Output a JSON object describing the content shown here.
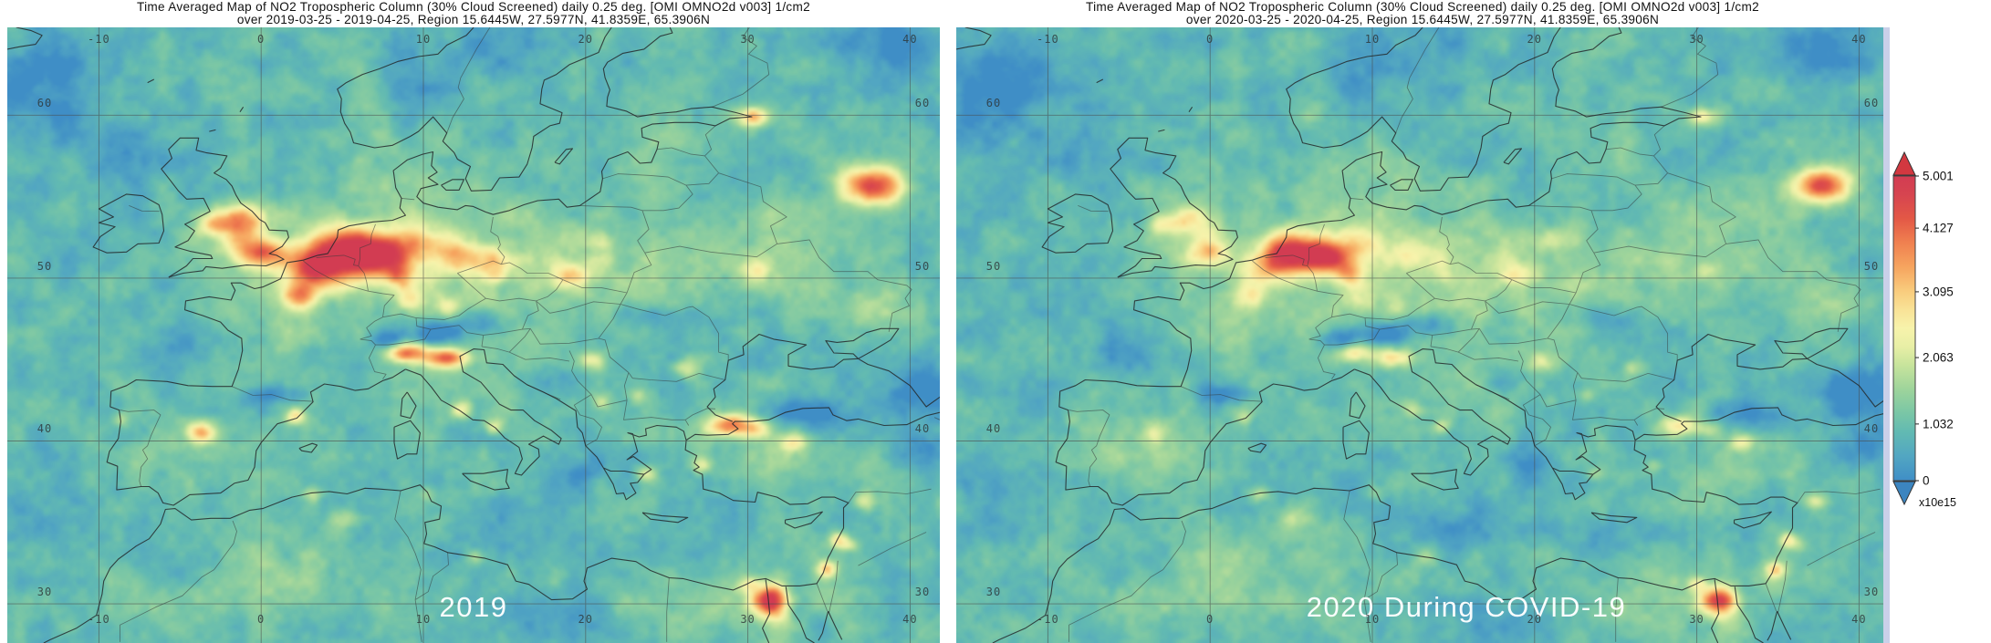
{
  "panels": [
    {
      "title_line1": "Time Averaged Map of NO2 Tropospheric Column (30% Cloud Screened) daily 0.25 deg. [OMI OMNO2d v003] 1/cm2",
      "title_line2": "over 2019-03-25 - 2019-04-25, Region 15.6445W, 27.5977N, 41.8359E, 65.3906N",
      "year_label": "2019",
      "seed": 7,
      "hotspots": [
        [
          -1.3,
          53.5,
          1.5,
          1.05,
          2.6
        ],
        [
          -0.1,
          51.55,
          1.6,
          1.0,
          3.1
        ],
        [
          -3.0,
          53.3,
          0.9,
          0.7,
          1.6
        ],
        [
          3.3,
          50.5,
          1.8,
          1.1,
          2.4
        ],
        [
          4.9,
          51.6,
          2.3,
          1.5,
          3.7
        ],
        [
          7.3,
          51.4,
          1.9,
          1.2,
          3.2
        ],
        [
          9.7,
          52.2,
          1.7,
          1.1,
          1.7
        ],
        [
          12.2,
          51.3,
          1.4,
          0.95,
          1.7
        ],
        [
          14.4,
          51.0,
          1.0,
          0.8,
          1.2
        ],
        [
          2.4,
          48.9,
          1.05,
          0.8,
          2.3
        ],
        [
          8.6,
          50.1,
          1.0,
          0.8,
          1.7
        ],
        [
          9.2,
          48.7,
          0.85,
          0.7,
          1.2
        ],
        [
          11.5,
          48.2,
          0.7,
          0.6,
          1.0
        ],
        [
          8.9,
          45.45,
          1.15,
          0.6,
          3.2
        ],
        [
          11.3,
          45.1,
          1.4,
          0.6,
          2.9
        ],
        [
          -3.6,
          40.5,
          0.8,
          0.65,
          2.5
        ],
        [
          2.1,
          41.5,
          0.6,
          0.5,
          1.8
        ],
        [
          -8.6,
          41.3,
          0.5,
          0.45,
          0.9
        ],
        [
          5.2,
          35.2,
          0.9,
          0.7,
          0.9
        ],
        [
          3.1,
          36.7,
          0.6,
          0.5,
          1.0
        ],
        [
          10.2,
          36.8,
          0.55,
          0.45,
          0.8
        ],
        [
          13.2,
          32.85,
          0.6,
          0.5,
          0.7
        ],
        [
          19.1,
          50.2,
          1.2,
          0.8,
          1.7
        ],
        [
          21.0,
          52.25,
          0.75,
          0.6,
          1.0
        ],
        [
          14.4,
          50.1,
          0.6,
          0.5,
          0.9
        ],
        [
          37.7,
          55.7,
          1.8,
          1.15,
          3.7
        ],
        [
          30.3,
          59.9,
          0.95,
          0.6,
          2.7
        ],
        [
          30.5,
          50.45,
          0.8,
          0.6,
          1.1
        ],
        [
          37.8,
          48.1,
          2.3,
          1.2,
          0.95
        ],
        [
          28.9,
          40.95,
          1.4,
          0.7,
          3.1
        ],
        [
          30.7,
          40.7,
          1.0,
          0.6,
          1.4
        ],
        [
          32.8,
          39.9,
          0.75,
          0.55,
          1.6
        ],
        [
          27.2,
          38.5,
          0.6,
          0.5,
          1.1
        ],
        [
          23.7,
          38.0,
          0.6,
          0.5,
          1.2
        ],
        [
          12.4,
          41.9,
          0.7,
          0.55,
          1.4
        ],
        [
          14.3,
          40.9,
          0.6,
          0.5,
          1.3
        ],
        [
          20.4,
          44.9,
          0.8,
          0.6,
          1.3
        ],
        [
          26.1,
          44.45,
          0.8,
          0.6,
          1.2
        ],
        [
          23.3,
          42.8,
          0.55,
          0.45,
          0.9
        ],
        [
          21.0,
          42.4,
          0.55,
          0.45,
          0.9
        ],
        [
          31.3,
          30.2,
          1.15,
          0.9,
          3.7
        ],
        [
          30.0,
          31.2,
          0.7,
          0.5,
          1.3
        ],
        [
          34.85,
          32.1,
          0.6,
          0.5,
          2.1
        ],
        [
          35.6,
          33.9,
          0.55,
          0.5,
          2.0
        ],
        [
          37.2,
          36.3,
          0.75,
          0.55,
          1.4
        ],
        [
          36.3,
          33.6,
          0.5,
          0.45,
          1.0
        ]
      ]
    },
    {
      "title_line1": "Time Averaged Map of NO2 Tropospheric Column (30% Cloud Screened) daily 0.25 deg. [OMI OMNO2d v003] 1/cm2",
      "title_line2": "over 2020-03-25 - 2020-04-25, Region 15.6445W, 27.5977N, 41.8359E, 65.3906N",
      "year_label": "2020 During COVID-19",
      "seed": 13,
      "hotspots": [
        [
          -1.3,
          53.5,
          1.3,
          0.9,
          1.5
        ],
        [
          -0.1,
          51.55,
          1.2,
          0.85,
          2.0
        ],
        [
          -3.0,
          53.3,
          0.8,
          0.6,
          1.0
        ],
        [
          3.3,
          50.5,
          1.5,
          1.0,
          1.3
        ],
        [
          4.9,
          51.55,
          1.8,
          1.2,
          3.5
        ],
        [
          7.3,
          51.35,
          1.5,
          1.05,
          2.9
        ],
        [
          9.7,
          52.2,
          1.4,
          0.95,
          1.0
        ],
        [
          12.2,
          51.3,
          1.2,
          0.85,
          1.0
        ],
        [
          14.4,
          51.0,
          0.9,
          0.7,
          0.7
        ],
        [
          2.4,
          48.9,
          0.95,
          0.75,
          1.2
        ],
        [
          8.6,
          50.1,
          0.95,
          0.75,
          1.5
        ],
        [
          9.2,
          48.7,
          0.8,
          0.65,
          0.8
        ],
        [
          11.5,
          48.2,
          0.65,
          0.55,
          0.7
        ],
        [
          8.9,
          45.45,
          1.05,
          0.55,
          1.9
        ],
        [
          11.3,
          45.1,
          1.3,
          0.55,
          1.7
        ],
        [
          -3.6,
          40.5,
          0.7,
          0.6,
          0.8
        ],
        [
          2.1,
          41.5,
          0.55,
          0.45,
          0.8
        ],
        [
          -8.6,
          41.3,
          0.45,
          0.4,
          0.5
        ],
        [
          5.2,
          35.2,
          0.9,
          0.7,
          0.8
        ],
        [
          3.1,
          36.7,
          0.6,
          0.5,
          0.9
        ],
        [
          10.2,
          36.8,
          0.55,
          0.45,
          0.7
        ],
        [
          13.2,
          32.85,
          0.6,
          0.5,
          0.6
        ],
        [
          19.1,
          50.2,
          1.1,
          0.75,
          1.2
        ],
        [
          21.0,
          52.25,
          0.7,
          0.55,
          0.7
        ],
        [
          14.4,
          50.1,
          0.55,
          0.45,
          0.6
        ],
        [
          37.7,
          55.7,
          1.7,
          1.1,
          3.4
        ],
        [
          30.3,
          59.9,
          0.85,
          0.55,
          1.8
        ],
        [
          30.5,
          50.45,
          0.75,
          0.55,
          0.7
        ],
        [
          37.8,
          48.1,
          2.1,
          1.1,
          0.7
        ],
        [
          28.9,
          40.95,
          1.2,
          0.65,
          1.8
        ],
        [
          30.7,
          40.7,
          0.9,
          0.55,
          0.9
        ],
        [
          32.8,
          39.9,
          0.7,
          0.5,
          1.3
        ],
        [
          27.2,
          38.5,
          0.55,
          0.45,
          0.8
        ],
        [
          23.7,
          38.0,
          0.55,
          0.45,
          0.8
        ],
        [
          12.4,
          41.9,
          0.65,
          0.5,
          0.9
        ],
        [
          14.3,
          40.9,
          0.55,
          0.45,
          1.0
        ],
        [
          20.4,
          44.9,
          0.75,
          0.55,
          1.0
        ],
        [
          26.1,
          44.45,
          0.75,
          0.55,
          0.9
        ],
        [
          23.3,
          42.8,
          0.5,
          0.4,
          0.7
        ],
        [
          21.0,
          42.4,
          0.5,
          0.4,
          0.7
        ],
        [
          31.3,
          30.2,
          1.1,
          0.85,
          3.5
        ],
        [
          30.0,
          31.2,
          0.65,
          0.45,
          1.1
        ],
        [
          34.85,
          32.1,
          0.55,
          0.45,
          1.7
        ],
        [
          35.6,
          33.9,
          0.5,
          0.45,
          1.6
        ],
        [
          37.2,
          36.3,
          0.7,
          0.5,
          1.1
        ],
        [
          36.3,
          33.6,
          0.45,
          0.4,
          0.8
        ]
      ]
    }
  ],
  "shared_features": {
    "positive": [
      [
        10,
        51,
        9,
        4,
        0.85
      ],
      [
        22,
        50.5,
        7,
        3.5,
        0.6
      ],
      [
        33,
        52,
        6,
        4,
        0.5
      ],
      [
        -1.5,
        52.6,
        3,
        2.4,
        0.5
      ],
      [
        2,
        47,
        4,
        3,
        0.4
      ],
      [
        -4.5,
        39.5,
        4,
        2.6,
        0.55
      ],
      [
        0,
        31.5,
        9,
        2.8,
        0.6
      ],
      [
        27,
        30.2,
        6,
        2.2,
        0.5
      ],
      [
        33,
        38.8,
        5,
        2,
        0.55
      ],
      [
        16,
        43.5,
        5,
        3,
        0.4
      ],
      [
        9.5,
        56.5,
        3.5,
        2,
        0.45
      ],
      [
        7,
        61.2,
        1.6,
        2.6,
        0.6
      ],
      [
        25,
        58,
        4,
        2.6,
        0.3
      ],
      [
        31.8,
        28.8,
        0.8,
        2.6,
        0.8
      ],
      [
        35,
        31.8,
        1.6,
        2.0,
        0.45
      ]
    ],
    "negative": [
      [
        8,
        46.2,
        1.15,
        0.7,
        -1.35
      ],
      [
        10.8,
        46.6,
        1.35,
        0.7,
        -1.55
      ],
      [
        13.6,
        47.15,
        1.4,
        0.8,
        -1.15
      ],
      [
        0.8,
        42.85,
        1.6,
        0.55,
        -1.0
      ],
      [
        8.5,
        62.3,
        2.2,
        2.2,
        -0.7
      ],
      [
        14,
        64.5,
        3,
        2,
        -0.55
      ],
      [
        -13,
        61.5,
        3.6,
        3.4,
        -0.85
      ],
      [
        -7.6,
        57.6,
        2.3,
        1.8,
        -0.5
      ],
      [
        40.3,
        42.9,
        2.3,
        1.5,
        -1.15
      ],
      [
        33.8,
        41.6,
        2.8,
        0.8,
        -0.95
      ],
      [
        40.6,
        39.7,
        2.0,
        1.3,
        -0.8
      ],
      [
        24.8,
        47.6,
        2.3,
        0.8,
        -0.75
      ],
      [
        18.2,
        43.8,
        1.7,
        0.9,
        -0.6
      ],
      [
        15,
        34.6,
        2.6,
        1.6,
        -0.5
      ],
      [
        19.8,
        38.1,
        1.5,
        1.2,
        -0.6
      ],
      [
        -5,
        45.7,
        2.5,
        1.7,
        -0.45
      ],
      [
        -4.8,
        32.2,
        2.6,
        1.3,
        -0.5
      ],
      [
        38.5,
        64.3,
        3.2,
        1.9,
        -0.85
      ],
      [
        -4.4,
        57.2,
        1.1,
        0.8,
        -0.55
      ],
      [
        3.2,
        45.2,
        1.1,
        0.75,
        -0.5
      ],
      [
        18,
        28.8,
        3.2,
        1.6,
        -0.45
      ],
      [
        24.5,
        34.2,
        2.5,
        1.2,
        -0.35
      ],
      [
        -12,
        36,
        3,
        3,
        -0.3
      ],
      [
        30,
        56.5,
        2.6,
        1.8,
        -0.3
      ]
    ]
  },
  "grid": {
    "region": {
      "west": -15.6445,
      "south": 27.5977,
      "east": 41.8359,
      "north": 65.3906
    },
    "lon_ticks": [
      -10,
      0,
      10,
      20,
      30,
      40
    ],
    "lon_labels": [
      "-10",
      "0",
      "10",
      "20",
      "30",
      "40"
    ],
    "lat_ticks": [
      60,
      50,
      40,
      30
    ],
    "lat_labels": [
      "60",
      "50",
      "40",
      "30"
    ]
  },
  "colorbar": {
    "ticks": [
      {
        "label": "5.001",
        "pos": 0.0
      },
      {
        "label": "4.127",
        "pos": 0.171
      },
      {
        "label": "3.095",
        "pos": 0.38
      },
      {
        "label": "2.063",
        "pos": 0.596
      },
      {
        "label": "1.032",
        "pos": 0.814
      },
      {
        "label": "0",
        "pos": 1.0
      }
    ],
    "unit_label": "x10e15",
    "max_value": 5.001,
    "palette": [
      [
        0.0,
        "#3f8ec6"
      ],
      [
        0.4,
        "#52a6c2"
      ],
      [
        0.8,
        "#62bab2"
      ],
      [
        1.1,
        "#79c6a6"
      ],
      [
        1.5,
        "#9ed49b"
      ],
      [
        1.9,
        "#c8e49c"
      ],
      [
        2.2,
        "#e8efa6"
      ],
      [
        2.5,
        "#f7f3ab"
      ],
      [
        2.8,
        "#f9e397"
      ],
      [
        3.1,
        "#f9cd7e"
      ],
      [
        3.5,
        "#f6a55f"
      ],
      [
        3.9,
        "#f08150"
      ],
      [
        4.3,
        "#e35846"
      ],
      [
        4.7,
        "#d64450"
      ],
      [
        5.0,
        "#d23c52"
      ]
    ],
    "arrow_up_color": "#d23840",
    "arrow_down_color": "#3c85c0"
  },
  "chart_data": {
    "type": "heatmap",
    "title": "Time Averaged Map of NO2 Tropospheric Column (30% Cloud Screened) daily 0.25 deg. [OMI OMNO2d v003]",
    "panels": [
      "2019",
      "2020 During COVID-19"
    ],
    "colorbar_ticks": [
      5.001,
      4.127,
      3.095,
      2.063,
      1.032,
      0
    ],
    "scale_factor": "x10e15",
    "units": "1/cm2",
    "region": {
      "west_lon": -15.6445,
      "south_lat": 27.5977,
      "east_lon": 41.8359,
      "north_lat": 65.3906
    },
    "summary": "NO2 column hotspots over NW Europe (UK/Benelux/Ruhr), Paris, Po Valley, Madrid, Moscow, St. Petersburg, Istanbul, the Levant coast and Cairo; hotspot extent and intensity are markedly reduced in the 2020 COVID-19 panel"
  }
}
